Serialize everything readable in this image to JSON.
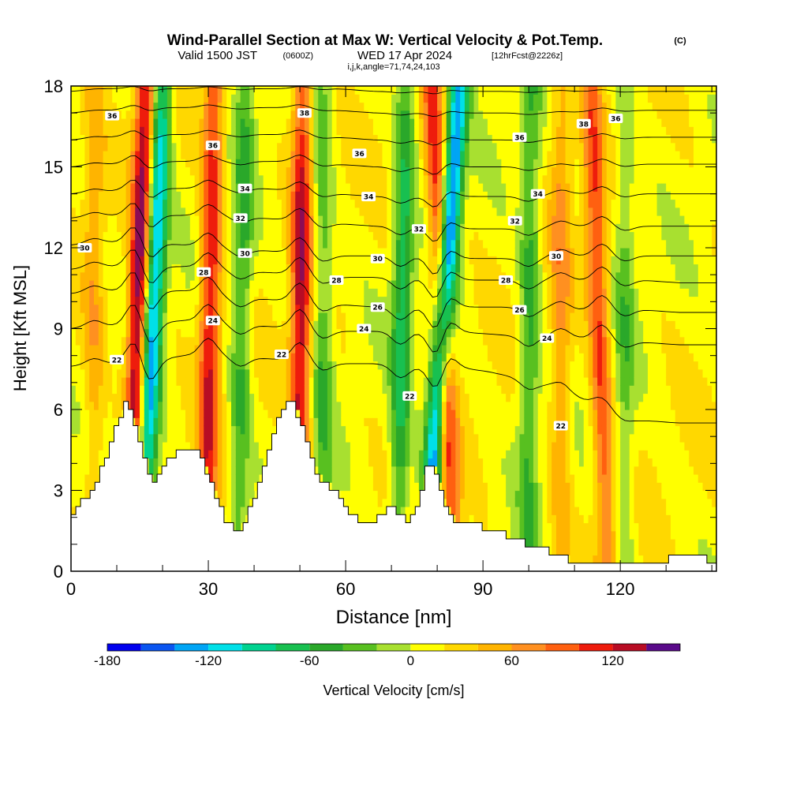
{
  "header": {
    "title_main": "Wind-Parallel Section at Max W: Vertical Velocity & Pot.Temp.",
    "title_mark": "(C)",
    "valid_prefix": "Valid 1500 JST",
    "valid_utc": "(0600Z)",
    "valid_date": "WED 17 Apr 2024",
    "forecast": "[12hrFcst@2226z]",
    "indices": "i,j,k,angle=71,74,24,103"
  },
  "chart_data": {
    "type": "heatmap",
    "xlabel": "Distance [nm]",
    "ylabel": "Height [Kft MSL]",
    "xlim": [
      0,
      141
    ],
    "ylim": [
      0,
      18
    ],
    "x_ticks": [
      0,
      30,
      60,
      90,
      120
    ],
    "y_ticks": [
      0,
      3,
      6,
      9,
      12,
      15,
      18
    ],
    "colorbar": {
      "label": "Vertical Velocity [cm/s]",
      "tick_values": [
        -180,
        -120,
        -60,
        0,
        60,
        120
      ],
      "levels": [
        -180,
        -160,
        -140,
        -120,
        -100,
        -80,
        -60,
        -40,
        -20,
        0,
        20,
        40,
        60,
        80,
        100,
        120,
        140,
        160
      ],
      "colors": [
        "#0000ee",
        "#0a55f0",
        "#00a5f5",
        "#00e0e8",
        "#00d390",
        "#18c050",
        "#2aa82a",
        "#58c020",
        "#a8e030",
        "#ffff00",
        "#ffd800",
        "#ffb400",
        "#ff9020",
        "#ff6010",
        "#ee1c0c",
        "#b80c24",
        "#8c0c56",
        "#5a0a8a"
      ]
    },
    "terrain_kft": {
      "x": [
        0,
        2,
        4,
        6,
        8,
        10,
        12,
        14,
        16,
        18,
        20,
        22,
        24,
        26,
        28,
        30,
        32,
        34,
        36,
        38,
        40,
        42,
        44,
        46,
        48,
        50,
        52,
        54,
        56,
        58,
        60,
        62,
        64,
        66,
        68,
        70,
        72,
        74,
        76,
        78,
        80,
        82,
        84,
        86,
        88,
        90,
        92,
        94,
        96,
        98,
        100,
        102,
        104,
        106,
        108,
        110,
        112,
        114,
        116,
        118,
        120,
        122,
        124,
        126,
        128,
        130,
        132,
        134,
        136,
        138,
        140,
        141
      ],
      "h": [
        2.0,
        2.4,
        2.9,
        3.5,
        4.4,
        5.4,
        6.2,
        5.6,
        4.4,
        3.2,
        3.8,
        4.2,
        4.6,
        4.6,
        4.4,
        3.6,
        2.6,
        1.9,
        1.4,
        1.8,
        2.7,
        3.7,
        4.9,
        5.9,
        6.4,
        5.7,
        4.5,
        3.6,
        3.2,
        3.0,
        2.5,
        2.0,
        1.7,
        1.8,
        2.2,
        2.3,
        2.1,
        1.8,
        2.6,
        3.9,
        3.7,
        2.5,
        1.9,
        1.8,
        1.9,
        1.6,
        1.5,
        1.4,
        1.3,
        1.1,
        1.0,
        0.9,
        0.8,
        0.6,
        0.5,
        0.4,
        0.3,
        0.3,
        0.3,
        0.3,
        0.3,
        0.3,
        0.3,
        0.3,
        0.3,
        0.4,
        0.5,
        0.6,
        0.7,
        0.5,
        0.3,
        0.3
      ]
    },
    "updrafts": [
      {
        "x": 14,
        "w": 150,
        "lean": 0.2
      },
      {
        "x": 30,
        "w": 110,
        "lean": 0.1
      },
      {
        "x": 50,
        "w": 120,
        "lean": 0.05
      },
      {
        "x": 82,
        "w": 110,
        "lean": -0.25
      },
      {
        "x": 116,
        "w": 90,
        "lean": -0.2
      },
      {
        "x": 107,
        "w": 50,
        "lean": 0.0
      },
      {
        "x": 5,
        "w": 40,
        "lean": 0.0
      }
    ],
    "downdrafts": [
      {
        "x": 17,
        "w": -150,
        "lean": 0.25
      },
      {
        "x": 80,
        "w": -180,
        "lean": 0.4
      },
      {
        "x": 37,
        "w": -60,
        "lean": 0.1
      },
      {
        "x": 55,
        "w": -50,
        "lean": 0.0
      },
      {
        "x": 72,
        "w": -80,
        "lean": 0.1
      },
      {
        "x": 100,
        "w": -60,
        "lean": 0.05
      },
      {
        "x": 121,
        "w": -40,
        "lean": 0.0
      }
    ],
    "isentropes": [
      {
        "h": [
          7.6,
          7.7,
          7.8,
          8.0,
          8.0,
          7.9,
          7.8,
          7.7,
          7.7,
          7.6,
          7.6,
          7.4,
          7.1,
          6.7,
          6.0,
          5.6,
          5.5,
          5.5
        ],
        "label": "22",
        "label_pts": [
          [
            10,
            7.85
          ],
          [
            46,
            8.05
          ],
          [
            74,
            6.5
          ],
          [
            107,
            5.4
          ]
        ]
      },
      {
        "h": [
          9.0,
          9.1,
          9.2,
          9.3,
          9.2,
          9.1,
          9.0,
          8.9,
          8.9,
          8.9,
          8.9,
          8.8,
          8.7,
          8.7,
          8.6,
          8.5,
          8.4,
          8.4
        ],
        "label": "24",
        "label_pts": [
          [
            31,
            9.3
          ],
          [
            64,
            9.0
          ],
          [
            104,
            8.65
          ]
        ]
      },
      {
        "h": [
          10.3,
          10.4,
          10.4,
          10.4,
          10.2,
          10.1,
          10.0,
          9.9,
          9.8,
          9.8,
          9.8,
          9.8,
          9.8,
          9.7,
          9.7,
          9.7,
          9.6,
          9.6
        ],
        "label": "26",
        "label_pts": [
          [
            67,
            9.8
          ],
          [
            98,
            9.7
          ]
        ]
      },
      {
        "h": [
          11.2,
          11.3,
          11.3,
          11.3,
          11.2,
          11.1,
          11.0,
          10.9,
          10.9,
          10.9,
          10.8,
          10.8,
          10.8,
          10.8,
          10.8,
          10.8,
          10.7,
          10.7
        ],
        "label": "28",
        "label_pts": [
          [
            29,
            11.1
          ],
          [
            58,
            10.8
          ],
          [
            95,
            10.8
          ]
        ]
      },
      {
        "h": [
          12.1,
          12.2,
          12.2,
          12.1,
          12.0,
          11.9,
          11.8,
          11.7,
          11.7,
          11.7,
          11.6,
          11.6,
          11.6,
          11.7,
          11.7,
          11.7,
          11.7,
          11.7
        ],
        "label": "30",
        "label_pts": [
          [
            3,
            12.0
          ],
          [
            38,
            11.8
          ],
          [
            67,
            11.6
          ],
          [
            106,
            11.7
          ]
        ]
      },
      {
        "h": [
          13.1,
          13.2,
          13.2,
          13.2,
          13.2,
          13.1,
          13.0,
          12.9,
          12.8,
          12.8,
          12.7,
          12.7,
          12.7,
          12.8,
          12.8,
          12.8,
          12.8,
          12.8
        ],
        "label": "32",
        "label_pts": [
          [
            37,
            13.1
          ],
          [
            76,
            12.7
          ],
          [
            97,
            13.0
          ]
        ]
      },
      {
        "h": [
          14.0,
          14.1,
          14.2,
          14.2,
          14.2,
          14.2,
          14.1,
          14.0,
          13.9,
          13.9,
          13.9,
          13.9,
          13.9,
          14.0,
          14.0,
          14.0,
          14.0,
          14.0
        ],
        "label": "34",
        "label_pts": [
          [
            38,
            14.2
          ],
          [
            65,
            13.9
          ],
          [
            102,
            14.0
          ]
        ]
      },
      {
        "h": [
          15.0,
          15.1,
          15.2,
          15.2,
          15.2,
          15.2,
          15.2,
          15.1,
          15.0,
          15.0,
          15.0,
          15.0,
          15.0,
          15.0,
          15.1,
          15.1,
          15.1,
          15.1
        ],
        "label": "",
        "label_pts": []
      },
      {
        "h": [
          16.0,
          16.1,
          16.2,
          16.2,
          16.2,
          16.2,
          16.2,
          16.1,
          16.0,
          16.0,
          16.0,
          16.0,
          16.0,
          16.0,
          16.1,
          16.1,
          16.1,
          16.1
        ],
        "label": "36",
        "label_pts": [
          [
            9,
            16.9
          ],
          [
            31,
            15.8
          ],
          [
            63,
            15.5
          ],
          [
            98,
            16.1
          ],
          [
            119,
            16.8
          ]
        ]
      },
      {
        "h": [
          17.0,
          17.1,
          17.2,
          17.2,
          17.2,
          17.2,
          17.2,
          17.1,
          17.0,
          17.0,
          17.0,
          17.0,
          17.0,
          17.0,
          17.1,
          17.1,
          17.1,
          17.1
        ],
        "label": "38",
        "label_pts": [
          [
            51,
            17.0
          ],
          [
            112,
            16.6
          ]
        ]
      },
      {
        "h": [
          17.8,
          17.9,
          17.9,
          17.9,
          17.9,
          17.9,
          17.9,
          17.9,
          17.8,
          17.8,
          17.8,
          17.8,
          17.8,
          17.8,
          17.8,
          17.8,
          17.8,
          17.8
        ],
        "label": "",
        "label_pts": []
      }
    ]
  }
}
